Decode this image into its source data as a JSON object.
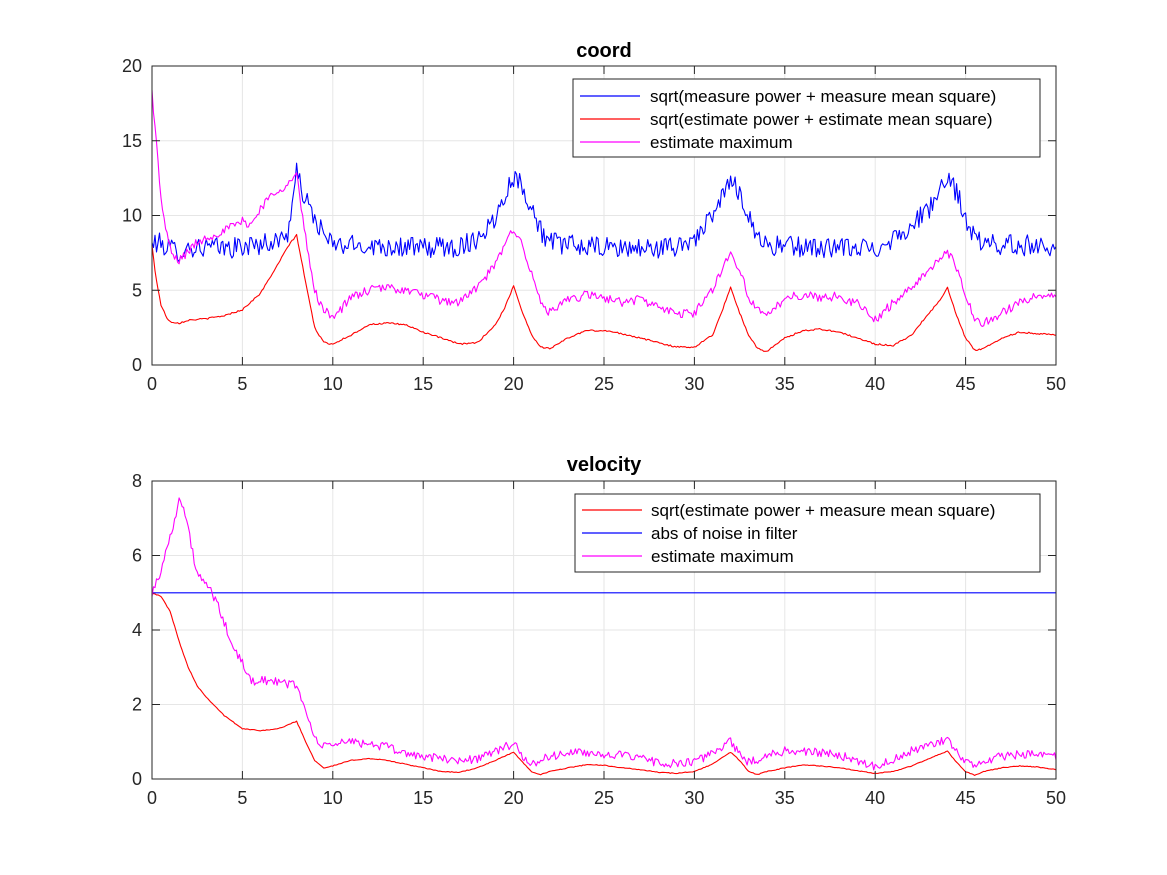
{
  "chart_data": [
    {
      "type": "line",
      "title": "coord",
      "xlabel": "",
      "ylabel": "",
      "xlim": [
        0,
        50
      ],
      "ylim": [
        0,
        20
      ],
      "xticks": [
        "0",
        "5",
        "10",
        "15",
        "20",
        "25",
        "30",
        "35",
        "40",
        "45",
        "50"
      ],
      "yticks": [
        "0",
        "5",
        "10",
        "15",
        "20"
      ],
      "grid": true,
      "legend_position": "top-right",
      "series": [
        {
          "name": "sqrt(measure power + measure mean square)",
          "color": "#0000ff",
          "noise": 0.7,
          "x": [
            0,
            0.2,
            0.5,
            1,
            1.5,
            2,
            3,
            4,
            5,
            6,
            7,
            7.5,
            8,
            8.5,
            9,
            9.5,
            10,
            12,
            14,
            15,
            16,
            17,
            18,
            19,
            19.5,
            20,
            20.5,
            21,
            21.5,
            22,
            24,
            26,
            28,
            29,
            30,
            31,
            31.5,
            32,
            32.5,
            33,
            33.5,
            34,
            36,
            38,
            40,
            41,
            42,
            43,
            43.5,
            44,
            44.5,
            45,
            45.5,
            46,
            48,
            50
          ],
          "y": [
            8,
            8.2,
            8.1,
            7.8,
            7.6,
            7.8,
            7.9,
            7.8,
            7.9,
            8.1,
            8.3,
            8.8,
            12.8,
            11,
            9.8,
            8.7,
            8,
            8,
            7.9,
            7.8,
            7.9,
            7.9,
            8.5,
            9.8,
            11.5,
            12.6,
            12,
            10.5,
            9,
            8.2,
            7.9,
            7.8,
            7.8,
            7.9,
            8.5,
            9.8,
            11.2,
            12.3,
            11.6,
            10,
            8.6,
            8,
            7.9,
            7.8,
            7.8,
            8.5,
            9.3,
            10.5,
            11.5,
            12.3,
            11.6,
            9.8,
            8.5,
            8.1,
            8,
            8
          ]
        },
        {
          "name": "sqrt(estimate power + estimate mean square)",
          "color": "#ff0000",
          "noise": 0.05,
          "x": [
            0,
            0.2,
            0.5,
            0.8,
            1,
            1.5,
            2,
            3,
            4,
            5,
            6,
            7,
            7.5,
            8,
            8.5,
            9,
            9.5,
            10,
            11,
            12,
            13,
            14,
            15,
            16,
            17,
            18,
            19,
            19.5,
            20,
            20.5,
            21,
            21.5,
            22,
            23,
            24,
            25,
            26,
            27,
            28,
            29,
            30,
            31,
            31.5,
            32,
            32.5,
            33,
            33.5,
            34,
            35,
            36,
            37,
            38,
            39,
            40,
            41,
            42,
            43,
            43.5,
            44,
            44.5,
            45,
            45.5,
            46,
            47,
            48,
            49,
            50
          ],
          "y": [
            8,
            6,
            4,
            3.2,
            2.9,
            2.8,
            3,
            3.1,
            3.3,
            3.7,
            4.8,
            6.8,
            7.9,
            8.7,
            5.5,
            2.5,
            1.5,
            1.4,
            2,
            2.7,
            2.8,
            2.7,
            2.2,
            1.8,
            1.4,
            1.5,
            2.7,
            3.8,
            5.3,
            3.5,
            2,
            1.2,
            1.1,
            1.8,
            2.3,
            2.3,
            2.1,
            1.8,
            1.5,
            1.2,
            1.2,
            2,
            3.5,
            5.2,
            3.5,
            2,
            1.1,
            0.9,
            1.8,
            2.3,
            2.4,
            2.2,
            1.8,
            1.4,
            1.3,
            2,
            3.5,
            4.2,
            5.2,
            3.3,
            1.8,
            1,
            1.1,
            1.8,
            2.2,
            2.1,
            2
          ]
        },
        {
          "name": "estimate maximum",
          "color": "#ff00ff",
          "noise": 0.3,
          "x": [
            0,
            0.2,
            0.4,
            0.6,
            0.8,
            1,
            1.2,
            1.5,
            2,
            2.5,
            3,
            4,
            5,
            5.5,
            6,
            6.5,
            7,
            7.5,
            8,
            8.3,
            8.7,
            9,
            9.5,
            10,
            10.5,
            11,
            12,
            13,
            14,
            15,
            16,
            17,
            18,
            19,
            19.5,
            20,
            20.5,
            21,
            21.5,
            22,
            23,
            24,
            25,
            26,
            27,
            28,
            29,
            30,
            31,
            31.5,
            32,
            32.5,
            33,
            33.5,
            34,
            35,
            36,
            37,
            38,
            39,
            40,
            41,
            42,
            43,
            43.5,
            44,
            44.5,
            45,
            45.5,
            46,
            47,
            48,
            49,
            50
          ],
          "y": [
            18.3,
            15.5,
            12.5,
            10.2,
            8.8,
            7.8,
            7.2,
            7,
            7.6,
            8.2,
            8.5,
            9,
            9.6,
            9.4,
            10.5,
            11.2,
            11.8,
            12,
            12.8,
            10,
            7,
            5,
            3.6,
            3.3,
            3.8,
            4.5,
            5,
            5.2,
            5,
            4.7,
            4.3,
            4.2,
            5.2,
            6.7,
            8,
            9.2,
            8,
            6,
            4.2,
            3.5,
            4.3,
            4.7,
            4.5,
            4.2,
            4.4,
            3.9,
            3.4,
            3.5,
            5,
            6.4,
            7.5,
            6.4,
            4.6,
            3.6,
            3.2,
            4.5,
            4.7,
            4.5,
            4.6,
            4.1,
            3,
            4.2,
            5.1,
            6.5,
            7,
            7.6,
            6.5,
            4.5,
            3.2,
            2.8,
            3.5,
            4.2,
            4.6,
            4.7
          ]
        }
      ]
    },
    {
      "type": "line",
      "title": "velocity",
      "xlabel": "",
      "ylabel": "",
      "xlim": [
        0,
        50
      ],
      "ylim": [
        0,
        8
      ],
      "xticks": [
        "0",
        "5",
        "10",
        "15",
        "20",
        "25",
        "30",
        "35",
        "40",
        "45",
        "50"
      ],
      "yticks": [
        "0",
        "2",
        "4",
        "6",
        "8"
      ],
      "grid": true,
      "legend_position": "top-right",
      "series": [
        {
          "name": "sqrt(estimate power + measure mean square)",
          "color": "#ff0000",
          "noise": 0.01,
          "x": [
            0,
            0.5,
            1,
            1.5,
            2,
            2.5,
            3,
            4,
            5,
            6,
            7,
            7.5,
            8,
            8.5,
            9,
            9.5,
            10,
            11,
            12,
            13,
            14,
            15,
            16,
            17,
            18,
            19,
            20,
            20.5,
            21,
            21.5,
            22,
            23,
            24,
            25,
            26,
            27,
            28,
            29,
            30,
            31,
            32,
            32.5,
            33,
            33.5,
            34,
            35,
            36,
            37,
            38,
            39,
            40,
            41,
            42,
            43,
            44,
            44.5,
            45,
            45.5,
            46,
            47,
            48,
            49,
            50
          ],
          "y": [
            5,
            4.9,
            4.5,
            3.7,
            3,
            2.5,
            2.2,
            1.7,
            1.35,
            1.3,
            1.35,
            1.45,
            1.55,
            1,
            0.5,
            0.3,
            0.35,
            0.5,
            0.55,
            0.5,
            0.4,
            0.3,
            0.2,
            0.18,
            0.3,
            0.5,
            0.72,
            0.45,
            0.2,
            0.12,
            0.2,
            0.3,
            0.38,
            0.37,
            0.3,
            0.25,
            0.18,
            0.15,
            0.2,
            0.4,
            0.72,
            0.5,
            0.2,
            0.12,
            0.2,
            0.3,
            0.38,
            0.35,
            0.3,
            0.22,
            0.15,
            0.2,
            0.35,
            0.55,
            0.75,
            0.45,
            0.2,
            0.1,
            0.2,
            0.3,
            0.35,
            0.32,
            0.25
          ]
        },
        {
          "name": "abs of noise in filter",
          "color": "#0000ff",
          "noise": 0,
          "x": [
            0,
            50
          ],
          "y": [
            5,
            5
          ]
        },
        {
          "name": "estimate maximum",
          "color": "#ff00ff",
          "noise": 0.12,
          "x": [
            0,
            0.5,
            1,
            1.5,
            1.8,
            2.2,
            2.5,
            2.8,
            3.2,
            3.6,
            4,
            4.5,
            5,
            5.5,
            6,
            6.5,
            7,
            7.5,
            8,
            8.5,
            9,
            9.5,
            10,
            11,
            12,
            13,
            14,
            15,
            16,
            17,
            18,
            19,
            20,
            20.5,
            21,
            21.5,
            22,
            23,
            24,
            25,
            26,
            27,
            28,
            29,
            30,
            31,
            32,
            32.5,
            33,
            33.5,
            34,
            35,
            36,
            37,
            38,
            39,
            40,
            41,
            42,
            43,
            44,
            44.5,
            45,
            45.5,
            46,
            47,
            48,
            49,
            50
          ],
          "y": [
            5,
            5.6,
            6.5,
            7.5,
            7.2,
            6.2,
            5.5,
            5.3,
            5.1,
            4.7,
            4.2,
            3.5,
            3.1,
            2.6,
            2.7,
            2.6,
            2.6,
            2.55,
            2.55,
            1.8,
            1.1,
            0.85,
            0.95,
            1,
            0.95,
            0.85,
            0.7,
            0.6,
            0.55,
            0.5,
            0.55,
            0.75,
            0.95,
            0.6,
            0.4,
            0.5,
            0.6,
            0.7,
            0.7,
            0.68,
            0.62,
            0.55,
            0.45,
            0.4,
            0.45,
            0.7,
            1,
            0.7,
            0.45,
            0.5,
            0.65,
            0.75,
            0.75,
            0.7,
            0.65,
            0.5,
            0.35,
            0.5,
            0.75,
            0.9,
            1.05,
            0.75,
            0.45,
            0.35,
            0.5,
            0.6,
            0.65,
            0.65,
            0.6
          ]
        }
      ]
    }
  ]
}
